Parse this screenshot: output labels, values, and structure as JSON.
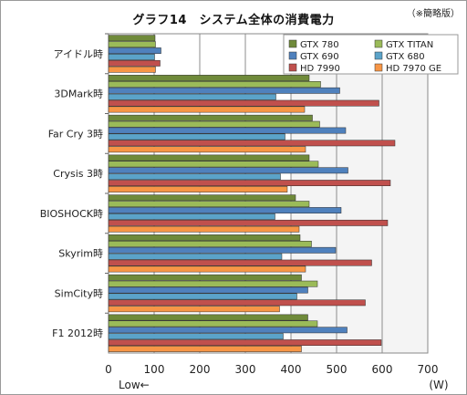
{
  "chart_data": {
    "type": "bar",
    "orientation": "horizontal",
    "title": "グラフ14　システム全体の消費電力",
    "note": "（※簡略版）",
    "xlabel": "Low←",
    "unit": "(W)",
    "xlim": [
      0,
      700
    ],
    "xticks": [
      0,
      100,
      200,
      300,
      400,
      500,
      600,
      700
    ],
    "grid": "vertical",
    "legend_position": "top-right",
    "categories": [
      "アイドル時",
      "3DMark時",
      "Far Cry 3時",
      "Crysis 3時",
      "BIOSHOCK時",
      "Skyrim時",
      "SimCity時",
      "F1 2012時"
    ],
    "series": [
      {
        "name": "GTX 780",
        "color": "#6f8a3a",
        "values": [
          102,
          440,
          447,
          440,
          410,
          420,
          423,
          437
        ]
      },
      {
        "name": "GTX TITAN",
        "color": "#9bbb59",
        "values": [
          103,
          465,
          463,
          460,
          440,
          445,
          458,
          458
        ]
      },
      {
        "name": "GTX 690",
        "color": "#4f81bd",
        "values": [
          115,
          507,
          520,
          525,
          510,
          498,
          437,
          523
        ]
      },
      {
        "name": "GTX 680",
        "color": "#5ba3c9",
        "values": [
          101,
          367,
          387,
          377,
          365,
          380,
          413,
          383
        ]
      },
      {
        "name": "HD 7990",
        "color": "#c0504d",
        "values": [
          113,
          593,
          628,
          618,
          612,
          577,
          563,
          598
        ]
      },
      {
        "name": "HD 7970 GE",
        "color": "#f79646",
        "values": [
          103,
          430,
          432,
          392,
          418,
          432,
          375,
          423
        ]
      }
    ]
  }
}
